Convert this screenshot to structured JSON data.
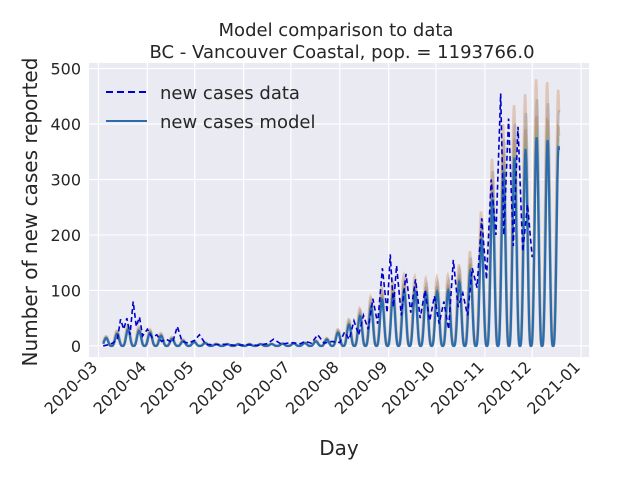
{
  "chart_data": {
    "type": "line",
    "title_line1": "Model comparison to data",
    "title_line2": "BC - Vancouver Coastal, pop. = 1193766.0",
    "xlabel": "Day",
    "ylabel": "Number of new cases reported",
    "x_range": [
      "2020-02-24",
      "2021-01-06"
    ],
    "ylim": [
      -20,
      510
    ],
    "x_ticks": [
      "2020-03",
      "2020-04",
      "2020-05",
      "2020-06",
      "2020-07",
      "2020-08",
      "2020-09",
      "2020-10",
      "2020-11",
      "2020-12",
      "2021-01"
    ],
    "y_ticks": [
      0,
      100,
      200,
      300,
      400,
      500
    ],
    "grid": true,
    "legend": "top-left",
    "series": [
      {
        "name": "new cases data",
        "style": "dashed",
        "color": "#0000cc",
        "points": [
          [
            "2020-03-04",
            0
          ],
          [
            "2020-03-07",
            2
          ],
          [
            "2020-03-10",
            5
          ],
          [
            "2020-03-13",
            12
          ],
          [
            "2020-03-15",
            48
          ],
          [
            "2020-03-17",
            30
          ],
          [
            "2020-03-19",
            50
          ],
          [
            "2020-03-21",
            20
          ],
          [
            "2020-03-23",
            80
          ],
          [
            "2020-03-25",
            35
          ],
          [
            "2020-03-27",
            52
          ],
          [
            "2020-03-29",
            18
          ],
          [
            "2020-04-01",
            30
          ],
          [
            "2020-04-04",
            15
          ],
          [
            "2020-04-07",
            20
          ],
          [
            "2020-04-10",
            8
          ],
          [
            "2020-04-13",
            12
          ],
          [
            "2020-04-17",
            6
          ],
          [
            "2020-04-20",
            35
          ],
          [
            "2020-04-23",
            8
          ],
          [
            "2020-04-27",
            5
          ],
          [
            "2020-05-01",
            10
          ],
          [
            "2020-05-04",
            20
          ],
          [
            "2020-05-08",
            3
          ],
          [
            "2020-05-13",
            2
          ],
          [
            "2020-05-20",
            3
          ],
          [
            "2020-05-27",
            1
          ],
          [
            "2020-06-03",
            2
          ],
          [
            "2020-06-10",
            1
          ],
          [
            "2020-06-16",
            4
          ],
          [
            "2020-06-20",
            12
          ],
          [
            "2020-06-25",
            3
          ],
          [
            "2020-07-01",
            6
          ],
          [
            "2020-07-07",
            4
          ],
          [
            "2020-07-10",
            8
          ],
          [
            "2020-07-14",
            5
          ],
          [
            "2020-07-18",
            20
          ],
          [
            "2020-07-22",
            5
          ],
          [
            "2020-07-27",
            8
          ],
          [
            "2020-08-01",
            6
          ],
          [
            "2020-08-04",
            25
          ],
          [
            "2020-08-07",
            12
          ],
          [
            "2020-08-10",
            45
          ],
          [
            "2020-08-13",
            20
          ],
          [
            "2020-08-16",
            55
          ],
          [
            "2020-08-19",
            30
          ],
          [
            "2020-08-22",
            85
          ],
          [
            "2020-08-25",
            40
          ],
          [
            "2020-08-28",
            140
          ],
          [
            "2020-08-31",
            60
          ],
          [
            "2020-09-02",
            165
          ],
          [
            "2020-09-04",
            70
          ],
          [
            "2020-09-06",
            145
          ],
          [
            "2020-09-09",
            55
          ],
          [
            "2020-09-12",
            130
          ],
          [
            "2020-09-15",
            60
          ],
          [
            "2020-09-18",
            120
          ],
          [
            "2020-09-21",
            50
          ],
          [
            "2020-09-24",
            100
          ],
          [
            "2020-09-27",
            45
          ],
          [
            "2020-09-30",
            90
          ],
          [
            "2020-10-03",
            40
          ],
          [
            "2020-10-06",
            80
          ],
          [
            "2020-10-09",
            30
          ],
          [
            "2020-10-12",
            155
          ],
          [
            "2020-10-15",
            70
          ],
          [
            "2020-10-18",
            95
          ],
          [
            "2020-10-21",
            55
          ],
          [
            "2020-10-24",
            140
          ],
          [
            "2020-10-27",
            105
          ],
          [
            "2020-10-30",
            230
          ],
          [
            "2020-11-02",
            120
          ],
          [
            "2020-11-05",
            300
          ],
          [
            "2020-11-08",
            200
          ],
          [
            "2020-11-11",
            455
          ],
          [
            "2020-11-13",
            200
          ],
          [
            "2020-11-16",
            410
          ],
          [
            "2020-11-19",
            180
          ],
          [
            "2020-11-22",
            395
          ],
          [
            "2020-11-25",
            170
          ],
          [
            "2020-11-28",
            255
          ],
          [
            "2020-12-01",
            160
          ]
        ]
      },
      {
        "name": "new cases model",
        "style": "solid",
        "color": "#2a6cb0",
        "amplitude_envelope": [
          [
            "2020-03-04",
            12
          ],
          [
            "2020-03-20",
            30
          ],
          [
            "2020-04-01",
            25
          ],
          [
            "2020-04-20",
            10
          ],
          [
            "2020-05-15",
            3
          ],
          [
            "2020-06-15",
            3
          ],
          [
            "2020-07-10",
            5
          ],
          [
            "2020-07-25",
            12
          ],
          [
            "2020-08-10",
            45
          ],
          [
            "2020-08-25",
            80
          ],
          [
            "2020-09-10",
            100
          ],
          [
            "2020-09-25",
            95
          ],
          [
            "2020-10-10",
            100
          ],
          [
            "2020-10-25",
            140
          ],
          [
            "2020-11-05",
            260
          ],
          [
            "2020-11-15",
            330
          ],
          [
            "2020-11-25",
            350
          ],
          [
            "2020-12-05",
            380
          ],
          [
            "2020-12-18",
            360
          ]
        ]
      }
    ]
  }
}
